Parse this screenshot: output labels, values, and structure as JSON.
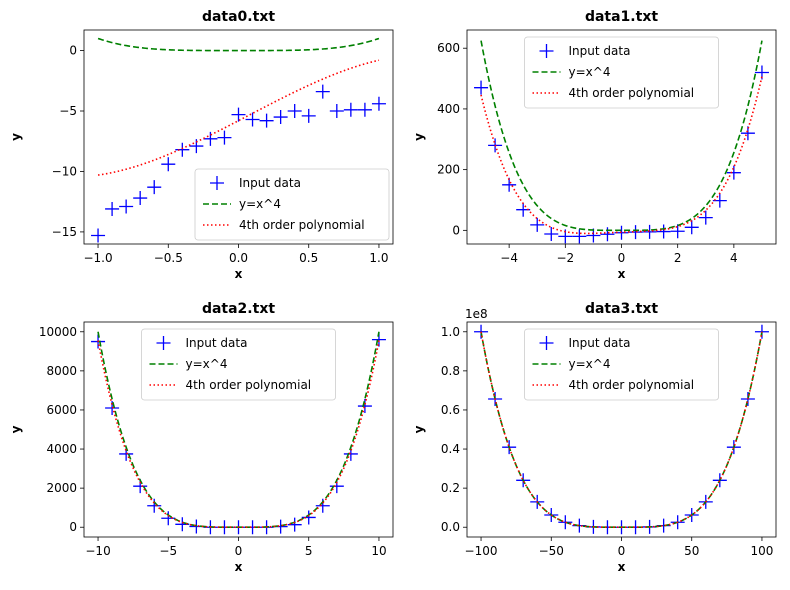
{
  "chart_data": [
    {
      "type": "line",
      "title": "data0.txt",
      "xlabel": "x",
      "ylabel": "y",
      "xlim": [
        -1.1,
        1.1
      ],
      "ylim": [
        -16.0,
        1.7
      ],
      "xticks": [
        -1.0,
        -0.5,
        0.0,
        0.5,
        1.0
      ],
      "xtick_labels": [
        "−1.0",
        "−0.5",
        "0.0",
        "0.5",
        "1.0"
      ],
      "yticks": [
        -15,
        -10,
        -5,
        0
      ],
      "ytick_labels": [
        "−15",
        "−10",
        "−5",
        "0"
      ],
      "exponent_label": "",
      "legend_position": "lower-right",
      "series": [
        {
          "name": "Input data",
          "style": "marker",
          "color": "#0000ff",
          "x": [
            -1.0,
            -0.9,
            -0.8,
            -0.7,
            -0.6,
            -0.5,
            -0.4,
            -0.3,
            -0.2,
            -0.1,
            0.0,
            0.1,
            0.2,
            0.3,
            0.4,
            0.5,
            0.6,
            0.7,
            0.8,
            0.9,
            1.0
          ],
          "y": [
            -15.3,
            -13.1,
            -12.9,
            -12.2,
            -11.3,
            -9.4,
            -8.2,
            -7.9,
            -7.3,
            -7.2,
            -5.3,
            -5.7,
            -5.8,
            -5.5,
            -5.0,
            -5.4,
            -3.4,
            -5.0,
            -4.9,
            -4.9,
            -4.4
          ]
        },
        {
          "name": "y=x^4",
          "style": "dashed",
          "color": "#008000",
          "function": "pow4",
          "coef": [
            0,
            0,
            0,
            0,
            1
          ],
          "xrange": [
            -1.0,
            1.0
          ]
        },
        {
          "name": "4th order polynomial",
          "style": "dotted",
          "color": "#ff0000",
          "function": "poly4",
          "coef": [
            -5.8,
            6.05,
            0.25,
            -1.3,
            0.0
          ],
          "xrange": [
            -1.0,
            1.0
          ]
        }
      ]
    },
    {
      "type": "line",
      "title": "data1.txt",
      "xlabel": "x",
      "ylabel": "y",
      "xlim": [
        -5.5,
        5.5
      ],
      "ylim": [
        -45,
        660
      ],
      "xticks": [
        -4,
        -2,
        0,
        2,
        4
      ],
      "xtick_labels": [
        "−4",
        "−2",
        "0",
        "2",
        "4"
      ],
      "yticks": [
        0,
        200,
        400,
        600
      ],
      "ytick_labels": [
        "0",
        "200",
        "400",
        "600"
      ],
      "exponent_label": "",
      "legend_position": "upper-center",
      "series": [
        {
          "name": "Input data",
          "style": "marker",
          "color": "#0000ff",
          "x": [
            -5.0,
            -4.5,
            -4.0,
            -3.5,
            -3.0,
            -2.5,
            -2.0,
            -1.5,
            -1.0,
            -0.5,
            0.0,
            0.5,
            1.0,
            1.5,
            2.0,
            2.5,
            3.0,
            3.5,
            4.0,
            4.5,
            5.0
          ],
          "y": [
            470,
            280,
            150,
            68,
            18,
            -12,
            -20,
            -20,
            -17,
            -13,
            -8,
            -6,
            -5,
            -4,
            -3,
            10,
            42,
            98,
            190,
            320,
            520
          ]
        },
        {
          "name": "y=x^4",
          "style": "dashed",
          "color": "#008000",
          "function": "pow4",
          "coef": [
            0,
            0,
            0,
            0,
            1
          ],
          "xrange": [
            -5.0,
            5.0
          ]
        },
        {
          "name": "4th order polynomial",
          "style": "dotted",
          "color": "#ff0000",
          "function": "poly4",
          "coef": [
            -6.1,
            3.8,
            -0.7,
            0.09,
            0.8
          ],
          "xrange": [
            -5.0,
            5.0
          ]
        }
      ]
    },
    {
      "type": "line",
      "title": "data2.txt",
      "xlabel": "x",
      "ylabel": "y",
      "xlim": [
        -11.0,
        11.0
      ],
      "ylim": [
        -500,
        10500
      ],
      "xticks": [
        -10,
        -5,
        0,
        5,
        10
      ],
      "xtick_labels": [
        "−10",
        "−5",
        "0",
        "5",
        "10"
      ],
      "yticks": [
        0,
        2000,
        4000,
        6000,
        8000,
        10000
      ],
      "ytick_labels": [
        "0",
        "2000",
        "4000",
        "6000",
        "8000",
        "10000"
      ],
      "exponent_label": "",
      "legend_position": "upper-center",
      "series": [
        {
          "name": "Input data",
          "style": "marker",
          "color": "#0000ff",
          "x": [
            -10,
            -9,
            -8,
            -7,
            -6,
            -5,
            -4,
            -3,
            -2,
            -1,
            0,
            1,
            2,
            3,
            4,
            5,
            6,
            7,
            8,
            9,
            10
          ],
          "y": [
            9500,
            6100,
            3750,
            2100,
            1100,
            460,
            150,
            40,
            0,
            0,
            0,
            0,
            0,
            30,
            130,
            500,
            1100,
            2100,
            3750,
            6200,
            9600
          ]
        },
        {
          "name": "y=x^4",
          "style": "dashed",
          "color": "#008000",
          "function": "pow4",
          "coef": [
            0,
            0,
            0,
            0,
            1
          ],
          "xrange": [
            -10.0,
            10.0
          ]
        },
        {
          "name": "4th order polynomial",
          "style": "dotted",
          "color": "#ff0000",
          "function": "poly4",
          "coef": [
            0,
            0,
            0,
            0,
            0.955
          ],
          "xrange": [
            -10.0,
            10.0
          ]
        }
      ]
    },
    {
      "type": "line",
      "title": "data3.txt",
      "xlabel": "x",
      "ylabel": "y",
      "xlim": [
        -110,
        110
      ],
      "ylim": [
        -0.05,
        1.05
      ],
      "xticks": [
        -100,
        -50,
        0,
        50,
        100
      ],
      "xtick_labels": [
        "−100",
        "−50",
        "0",
        "50",
        "100"
      ],
      "yticks": [
        0.0,
        0.2,
        0.4,
        0.6,
        0.8,
        1.0
      ],
      "ytick_labels": [
        "0.0",
        "0.2",
        "0.4",
        "0.6",
        "0.8",
        "1.0"
      ],
      "exponent_label": "1e8",
      "legend_position": "upper-center",
      "series": [
        {
          "name": "Input data",
          "style": "marker",
          "color": "#0000ff",
          "x": [
            -100,
            -90,
            -80,
            -70,
            -60,
            -50,
            -40,
            -30,
            -20,
            -10,
            0,
            10,
            20,
            30,
            40,
            50,
            60,
            70,
            80,
            90,
            100
          ],
          "y": [
            1.0,
            0.6561,
            0.4096,
            0.2401,
            0.1296,
            0.0625,
            0.0256,
            0.0081,
            0.0016,
            0.0001,
            0.0,
            0.0001,
            0.0016,
            0.0081,
            0.0256,
            0.0625,
            0.1296,
            0.2401,
            0.4096,
            0.6561,
            1.0
          ]
        },
        {
          "name": "y=x^4",
          "style": "dashed",
          "color": "#008000",
          "function": "pow4",
          "coef": [
            0,
            0,
            0,
            0,
            1e-08
          ],
          "xrange": [
            -100,
            100
          ]
        },
        {
          "name": "4th order polynomial",
          "style": "dotted",
          "color": "#ff0000",
          "function": "poly4",
          "coef": [
            0,
            0,
            0,
            0,
            1e-08
          ],
          "xrange": [
            -100,
            100
          ]
        }
      ]
    }
  ]
}
